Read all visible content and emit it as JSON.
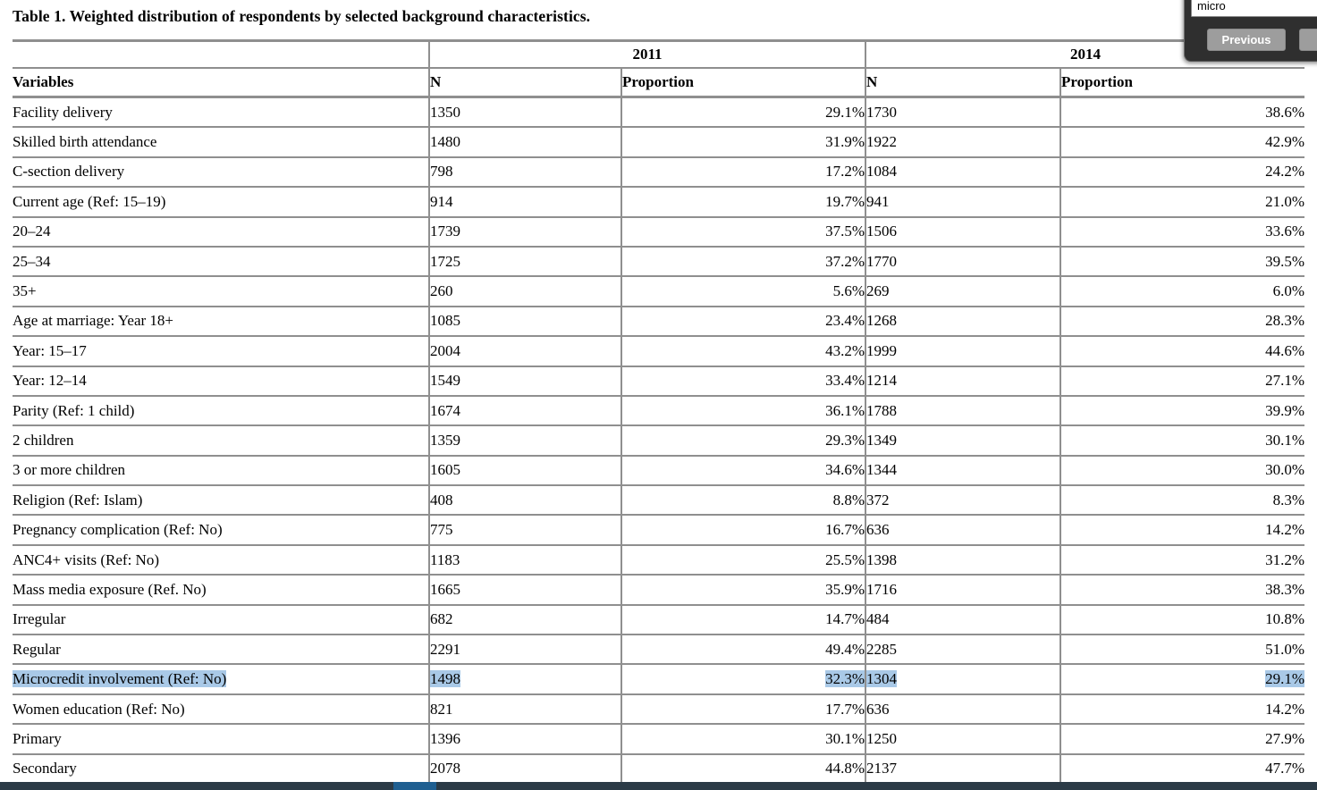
{
  "title": "Table 1.  Weighted distribution of respondents by selected background characteristics.",
  "find_bar": {
    "query": "micro",
    "previous_label": "Previous"
  },
  "table": {
    "group_headers": {
      "col_2011": "2011",
      "col_2014": "2014"
    },
    "column_headers": {
      "variables": "Variables",
      "n_2011": "N",
      "prop_2011": "Proportion",
      "n_2014": "N",
      "prop_2014": "Proportion"
    },
    "rows": [
      {
        "label": "Facility delivery",
        "n_2011": "1350",
        "prop_2011": "29.1%",
        "n_2014": "1730",
        "prop_2014": "38.6%",
        "highlight": false
      },
      {
        "label": "Skilled birth attendance",
        "n_2011": "1480",
        "prop_2011": "31.9%",
        "n_2014": "1922",
        "prop_2014": "42.9%",
        "highlight": false
      },
      {
        "label": "C-section delivery",
        "n_2011": "798",
        "prop_2011": "17.2%",
        "n_2014": "1084",
        "prop_2014": "24.2%",
        "highlight": false
      },
      {
        "label": "Current age (Ref: 15–19)",
        "n_2011": "914",
        "prop_2011": "19.7%",
        "n_2014": "941",
        "prop_2014": "21.0%",
        "highlight": false
      },
      {
        "label": "20–24",
        "n_2011": "1739",
        "prop_2011": "37.5%",
        "n_2014": "1506",
        "prop_2014": "33.6%",
        "highlight": false
      },
      {
        "label": "25–34",
        "n_2011": "1725",
        "prop_2011": "37.2%",
        "n_2014": "1770",
        "prop_2014": "39.5%",
        "highlight": false
      },
      {
        "label": "35+",
        "n_2011": "260",
        "prop_2011": "5.6%",
        "n_2014": "269",
        "prop_2014": "6.0%",
        "highlight": false
      },
      {
        "label": "Age at marriage: Year 18+",
        "n_2011": "1085",
        "prop_2011": "23.4%",
        "n_2014": "1268",
        "prop_2014": "28.3%",
        "highlight": false
      },
      {
        "label": "Year: 15–17",
        "n_2011": "2004",
        "prop_2011": "43.2%",
        "n_2014": "1999",
        "prop_2014": "44.6%",
        "highlight": false
      },
      {
        "label": "Year: 12–14",
        "n_2011": "1549",
        "prop_2011": "33.4%",
        "n_2014": "1214",
        "prop_2014": "27.1%",
        "highlight": false
      },
      {
        "label": "Parity (Ref: 1 child)",
        "n_2011": "1674",
        "prop_2011": "36.1%",
        "n_2014": "1788",
        "prop_2014": "39.9%",
        "highlight": false
      },
      {
        "label": "2 children",
        "n_2011": "1359",
        "prop_2011": "29.3%",
        "n_2014": "1349",
        "prop_2014": "30.1%",
        "highlight": false
      },
      {
        "label": "3 or more children",
        "n_2011": "1605",
        "prop_2011": "34.6%",
        "n_2014": "1344",
        "prop_2014": "30.0%",
        "highlight": false
      },
      {
        "label": "Religion (Ref: Islam)",
        "n_2011": "408",
        "prop_2011": "8.8%",
        "n_2014": "372",
        "prop_2014": "8.3%",
        "highlight": false
      },
      {
        "label": "Pregnancy complication (Ref: No)",
        "n_2011": "775",
        "prop_2011": "16.7%",
        "n_2014": "636",
        "prop_2014": "14.2%",
        "highlight": false
      },
      {
        "label": "ANC4+ visits (Ref: No)",
        "n_2011": "1183",
        "prop_2011": "25.5%",
        "n_2014": "1398",
        "prop_2014": "31.2%",
        "highlight": false
      },
      {
        "label": "Mass media exposure (Ref. No)",
        "n_2011": "1665",
        "prop_2011": "35.9%",
        "n_2014": "1716",
        "prop_2014": "38.3%",
        "highlight": false
      },
      {
        "label": "Irregular",
        "n_2011": "682",
        "prop_2011": "14.7%",
        "n_2014": "484",
        "prop_2014": "10.8%",
        "highlight": false
      },
      {
        "label": "Regular",
        "n_2011": "2291",
        "prop_2011": "49.4%",
        "n_2014": "2285",
        "prop_2014": "51.0%",
        "highlight": false
      },
      {
        "label": "Microcredit involvement (Ref: No)",
        "n_2011": "1498",
        "prop_2011": "32.3%",
        "n_2014": "1304",
        "prop_2014": "29.1%",
        "highlight": true
      },
      {
        "label": "Women education (Ref: No)",
        "n_2011": "821",
        "prop_2011": "17.7%",
        "n_2014": "636",
        "prop_2014": "14.2%",
        "highlight": false
      },
      {
        "label": "Primary",
        "n_2011": "1396",
        "prop_2011": "30.1%",
        "n_2014": "1250",
        "prop_2014": "27.9%",
        "highlight": false
      },
      {
        "label": "Secondary",
        "n_2011": "2078",
        "prop_2011": "44.8%",
        "n_2014": "2137",
        "prop_2014": "47.7%",
        "highlight": false
      }
    ]
  },
  "colors": {
    "highlight": "#a9c9e7",
    "table_border": "#8f8f8f",
    "find_panel": "#2f2f2f",
    "button_gray": "#9d9d9d",
    "scrollbar_track": "#2b3a46",
    "scrollbar_thumb": "#1f5f91"
  }
}
